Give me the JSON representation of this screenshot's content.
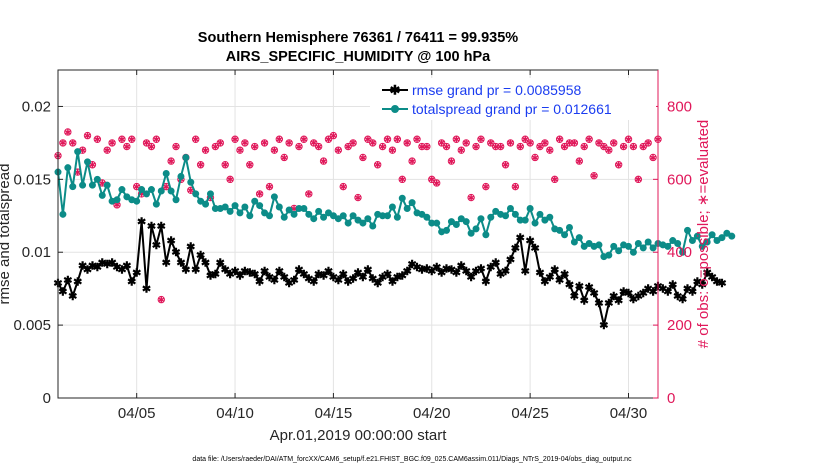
{
  "chart_data": {
    "type": "line",
    "title_line1": "Southern Hemisphere 76361 / 76411 = 99.935%",
    "title_line2": "AIRS_SPECIFIC_HUMIDITY @ 100 hPa",
    "xlabel": "Apr.01,2019 00:00:00 start",
    "ylabel_left": "rmse and totalspread",
    "ylabel_right": "# of obs: o=possible; ∗=evaluated",
    "footer": "data file: /Users/raeder/DAI/ATM_forcXX/CAM6_setup/f.e21.FHIST_BGC.f09_025.CAM6assim.011/Diags_NTrS_2019-04/obs_diag_output.nc",
    "x_range": [
      1,
      31.5
    ],
    "y_left_range": [
      0,
      0.0225
    ],
    "y_right_range": [
      0,
      900
    ],
    "x_ticks": [
      5,
      10,
      15,
      20,
      25,
      30
    ],
    "x_tick_labels": [
      "04/05",
      "04/10",
      "04/15",
      "04/20",
      "04/25",
      "04/30"
    ],
    "y_left_ticks": [
      0,
      0.005,
      0.01,
      0.015,
      0.02
    ],
    "y_left_tick_labels": [
      "0",
      "0.005",
      "0.01",
      "0.015",
      "0.02"
    ],
    "y_right_ticks": [
      0,
      200,
      400,
      600,
      800
    ],
    "y_right_tick_labels": [
      "0",
      "200",
      "400",
      "600",
      "800"
    ],
    "grid": true,
    "legend_position": "top-right",
    "series": [
      {
        "name": "rmse grand pr = 0.0085958",
        "color": "#000000",
        "marker": "star",
        "x_start": 1,
        "x_step": 0.25,
        "values": [
          0.0079,
          0.0073,
          0.0081,
          0.007,
          0.008,
          0.0091,
          0.0088,
          0.0091,
          0.009,
          0.0093,
          0.0092,
          0.0093,
          0.009,
          0.0088,
          0.0091,
          0.008,
          0.0086,
          0.0121,
          0.0075,
          0.0118,
          0.0105,
          0.0118,
          0.0093,
          0.0108,
          0.01,
          0.0093,
          0.0088,
          0.0104,
          0.0088,
          0.0098,
          0.0093,
          0.0084,
          0.0085,
          0.0093,
          0.0088,
          0.0085,
          0.0087,
          0.0084,
          0.0087,
          0.0086,
          0.0085,
          0.008,
          0.0087,
          0.0083,
          0.0081,
          0.0087,
          0.0083,
          0.0079,
          0.0081,
          0.0088,
          0.0085,
          0.0082,
          0.008,
          0.0085,
          0.0084,
          0.0087,
          0.0083,
          0.0081,
          0.0085,
          0.008,
          0.0082,
          0.0086,
          0.0083,
          0.0088,
          0.0082,
          0.0079,
          0.0083,
          0.0085,
          0.008,
          0.0083,
          0.0084,
          0.0087,
          0.0092,
          0.009,
          0.0088,
          0.0089,
          0.0087,
          0.009,
          0.0086,
          0.0089,
          0.0088,
          0.0086,
          0.0091,
          0.0087,
          0.0083,
          0.0087,
          0.0089,
          0.008,
          0.009,
          0.0093,
          0.0085,
          0.0087,
          0.0095,
          0.0103,
          0.011,
          0.0087,
          0.0108,
          0.0103,
          0.0086,
          0.008,
          0.0083,
          0.0088,
          0.0081,
          0.0085,
          0.0078,
          0.007,
          0.0077,
          0.0067,
          0.0076,
          0.0072,
          0.0065,
          0.005,
          0.0065,
          0.007,
          0.0067,
          0.0073,
          0.0072,
          0.0068,
          0.007,
          0.0072,
          0.0075,
          0.0073,
          0.0077,
          0.0075,
          0.0073,
          0.0078,
          0.007,
          0.0068,
          0.0075,
          0.0073,
          0.008,
          0.0078,
          0.0086,
          0.0083,
          0.008,
          0.0079
        ]
      },
      {
        "name": "totalspread grand pr = 0.012661",
        "color": "#0c8c88",
        "marker": "circle",
        "x_start": 1,
        "x_step": 0.25,
        "values": [
          0.0155,
          0.0126,
          0.0158,
          0.0145,
          0.0169,
          0.0146,
          0.0162,
          0.0146,
          0.015,
          0.0139,
          0.0146,
          0.0135,
          0.0136,
          0.0143,
          0.0138,
          0.0136,
          0.0135,
          0.0143,
          0.014,
          0.0143,
          0.0133,
          0.0142,
          0.0154,
          0.0142,
          0.0136,
          0.0152,
          0.0165,
          0.0148,
          0.014,
          0.0135,
          0.0133,
          0.014,
          0.013,
          0.013,
          0.0131,
          0.0128,
          0.0132,
          0.0127,
          0.0131,
          0.0125,
          0.0135,
          0.0132,
          0.0127,
          0.0125,
          0.0138,
          0.0131,
          0.0124,
          0.0129,
          0.0126,
          0.013,
          0.013,
          0.0126,
          0.0123,
          0.0128,
          0.0124,
          0.0127,
          0.0125,
          0.0123,
          0.0125,
          0.012,
          0.0125,
          0.0122,
          0.012,
          0.0123,
          0.0118,
          0.0126,
          0.0125,
          0.0125,
          0.0131,
          0.0124,
          0.0137,
          0.013,
          0.0134,
          0.0127,
          0.0126,
          0.0124,
          0.012,
          0.012,
          0.0114,
          0.0115,
          0.0121,
          0.0119,
          0.0123,
          0.0121,
          0.0113,
          0.0116,
          0.0123,
          0.0112,
          0.0124,
          0.0128,
          0.0126,
          0.0125,
          0.013,
          0.0126,
          0.0122,
          0.0122,
          0.013,
          0.012,
          0.0126,
          0.0122,
          0.0124,
          0.0116,
          0.0115,
          0.0112,
          0.0117,
          0.0107,
          0.011,
          0.0104,
          0.0106,
          0.0104,
          0.0105,
          0.0097,
          0.0098,
          0.0104,
          0.0101,
          0.0105,
          0.0104,
          0.01,
          0.0106,
          0.0103,
          0.0107,
          0.0103,
          0.0106,
          0.0105,
          0.0104,
          0.0108,
          0.0106,
          0.01,
          0.0115,
          0.0108,
          0.0111,
          0.0104,
          0.0107,
          0.0112,
          0.0108,
          0.011,
          0.0113,
          0.0111
        ]
      },
      {
        "name": "obs possible",
        "color": "#e0185a",
        "marker": "circle-open",
        "x_start": 1,
        "x_step": 0.25,
        "values": [
          665,
          700,
          730,
          700,
          620,
          680,
          720,
          640,
          710,
          590,
          680,
          700,
          530,
          710,
          690,
          710,
          580,
          560,
          700,
          690,
          710,
          270,
          580,
          650,
          690,
          600,
          660,
          570,
          710,
          640,
          680,
          550,
          690,
          700,
          640,
          600,
          710,
          680,
          700,
          640,
          690,
          560,
          700,
          580,
          680,
          710,
          660,
          700,
          520,
          690,
          710,
          560,
          700,
          690,
          650,
          710,
          720,
          680,
          580,
          690,
          700,
          550,
          660,
          710,
          700,
          640,
          690,
          710,
          680,
          710,
          600,
          700,
          650,
          710,
          690,
          690,
          600,
          590,
          700,
          690,
          650,
          710,
          680,
          700,
          550,
          690,
          710,
          580,
          700,
          690,
          690,
          640,
          700,
          580,
          690,
          710,
          700,
          660,
          690,
          700,
          680,
          600,
          710,
          690,
          700,
          700,
          650,
          690,
          710,
          610,
          700,
          690,
          680,
          700,
          640,
          690,
          710,
          690,
          600,
          690,
          700,
          660,
          710,
          690,
          700,
          640,
          690,
          700,
          700,
          690,
          700,
          680,
          620,
          690,
          710,
          0
        ]
      },
      {
        "name": "obs evaluated",
        "color": "#e0185a",
        "marker": "star",
        "x_start": 1,
        "x_step": 0.25,
        "values": [
          665,
          700,
          730,
          700,
          620,
          680,
          720,
          640,
          710,
          590,
          680,
          700,
          530,
          710,
          690,
          710,
          580,
          560,
          700,
          690,
          710,
          270,
          580,
          650,
          690,
          600,
          660,
          570,
          710,
          640,
          680,
          550,
          690,
          700,
          640,
          600,
          710,
          680,
          700,
          640,
          690,
          560,
          700,
          580,
          680,
          710,
          660,
          700,
          520,
          690,
          710,
          560,
          700,
          690,
          650,
          710,
          720,
          680,
          580,
          690,
          700,
          550,
          660,
          710,
          700,
          640,
          690,
          710,
          680,
          710,
          600,
          700,
          650,
          710,
          690,
          690,
          600,
          590,
          700,
          690,
          650,
          710,
          680,
          700,
          550,
          690,
          710,
          580,
          700,
          690,
          690,
          640,
          700,
          580,
          690,
          710,
          700,
          660,
          690,
          700,
          680,
          600,
          710,
          690,
          700,
          700,
          650,
          690,
          710,
          610,
          700,
          690,
          680,
          700,
          640,
          690,
          710,
          690,
          600,
          690,
          700,
          660,
          710,
          690,
          700,
          640,
          690,
          700,
          700,
          690,
          700,
          680,
          620,
          690,
          710,
          0
        ]
      }
    ]
  }
}
